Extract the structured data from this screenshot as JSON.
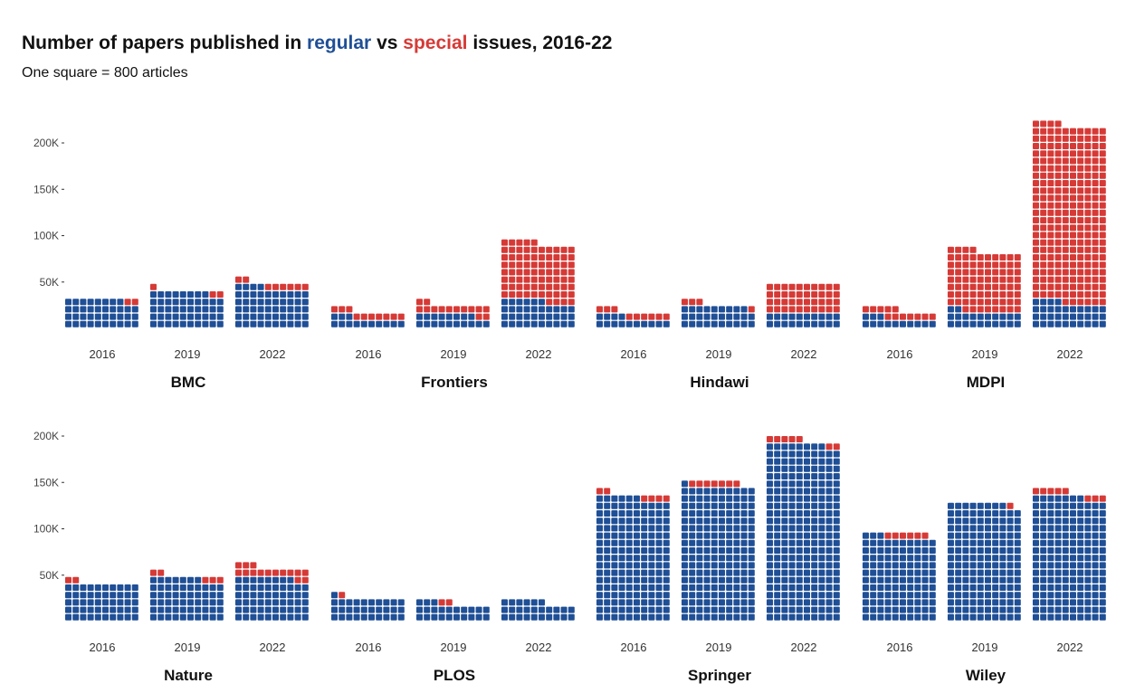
{
  "title": {
    "prefix": "Number of papers published in ",
    "regular_word": "regular",
    "middle": " vs ",
    "special_word": "special",
    "suffix": " issues, 2016-22"
  },
  "subtitle": "One square = 800 articles",
  "colors": {
    "regular": "#1f4f96",
    "special": "#d63a36"
  },
  "chart_data": {
    "type": "waffle",
    "square_value": 800,
    "grid_columns": 10,
    "y_ticks": [
      50000,
      100000,
      150000,
      200000
    ],
    "y_tick_labels": [
      "50K",
      "100K",
      "150K",
      "200K"
    ],
    "ylim": [
      0,
      220000
    ],
    "years": [
      "2016",
      "2019",
      "2022"
    ],
    "series_names": [
      "regular",
      "special"
    ],
    "panels": [
      {
        "publisher": "BMC",
        "squares": [
          {
            "year": "2016",
            "regular": 38,
            "special": 2
          },
          {
            "year": "2019",
            "regular": 48,
            "special": 3
          },
          {
            "year": "2022",
            "regular": 54,
            "special": 8
          }
        ]
      },
      {
        "publisher": "Frontiers",
        "squares": [
          {
            "year": "2016",
            "regular": 13,
            "special": 10
          },
          {
            "year": "2019",
            "regular": 18,
            "special": 14
          },
          {
            "year": "2022",
            "regular": 36,
            "special": 79
          }
        ]
      },
      {
        "publisher": "Hindawi",
        "squares": [
          {
            "year": "2016",
            "regular": 14,
            "special": 9
          },
          {
            "year": "2019",
            "regular": 29,
            "special": 4
          },
          {
            "year": "2022",
            "regular": 20,
            "special": 40
          }
        ]
      },
      {
        "publisher": "MDPI",
        "squares": [
          {
            "year": "2016",
            "regular": 13,
            "special": 12
          },
          {
            "year": "2019",
            "regular": 22,
            "special": 82
          },
          {
            "year": "2022",
            "regular": 34,
            "special": 240
          }
        ]
      },
      {
        "publisher": "Nature",
        "squares": [
          {
            "year": "2016",
            "regular": 50,
            "special": 2
          },
          {
            "year": "2019",
            "regular": 57,
            "special": 5
          },
          {
            "year": "2022",
            "regular": 58,
            "special": 15
          }
        ]
      },
      {
        "publisher": "PLOS",
        "squares": [
          {
            "year": "2016",
            "regular": 31,
            "special": 1
          },
          {
            "year": "2019",
            "regular": 23,
            "special": 2
          },
          {
            "year": "2022",
            "regular": 26,
            "special": 0
          }
        ]
      },
      {
        "publisher": "Springer",
        "squares": [
          {
            "year": "2016",
            "regular": 166,
            "special": 6
          },
          {
            "year": "2019",
            "regular": 181,
            "special": 7
          },
          {
            "year": "2022",
            "regular": 238,
            "special": 7
          }
        ]
      },
      {
        "publisher": "Wiley",
        "squares": [
          {
            "year": "2016",
            "regular": 113,
            "special": 6
          },
          {
            "year": "2019",
            "regular": 158,
            "special": 1
          },
          {
            "year": "2022",
            "regular": 167,
            "special": 8
          }
        ]
      }
    ]
  }
}
